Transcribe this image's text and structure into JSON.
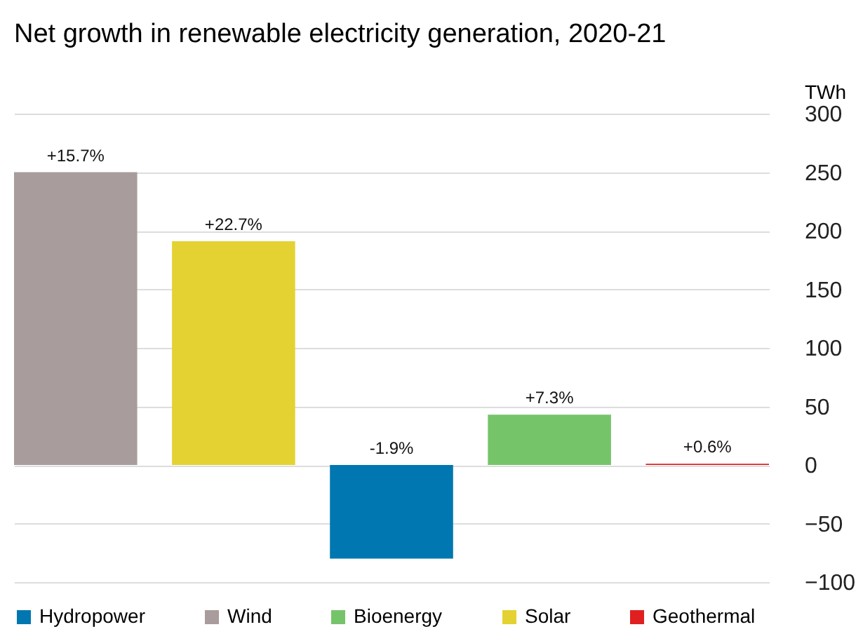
{
  "chart_data": {
    "type": "bar",
    "title": "Net growth in renewable electricity generation, 2020-21",
    "ylabel": "TWh",
    "categories": [
      null,
      null,
      null,
      null,
      null
    ],
    "series": [
      {
        "name": "Hydropower",
        "color": "#0077b0",
        "values": [
          null,
          null,
          -80,
          null,
          null
        ]
      },
      {
        "name": "Wind",
        "color": "#a89c9c",
        "values": [
          250,
          null,
          null,
          null,
          null
        ]
      },
      {
        "name": "Bioenergy",
        "color": "#76c46a",
        "values": [
          null,
          null,
          null,
          43,
          null
        ]
      },
      {
        "name": "Solar",
        "color": "#e3d232",
        "values": [
          null,
          191,
          null,
          null,
          null
        ]
      },
      {
        "name": "Geothermal",
        "color": "#e02020",
        "values": [
          null,
          null,
          null,
          null,
          1
        ]
      }
    ],
    "annotations": [
      {
        "text": "+15.7%",
        "y": 250
      },
      {
        "text": "+22.7%",
        "y": 191
      },
      {
        "text": "-1.9%",
        "y": 0
      },
      {
        "text": "+7.3%",
        "y": 43
      },
      {
        "text": "+0.6%",
        "y": 1
      }
    ],
    "ylim": [
      -100,
      300
    ],
    "yticks": [
      -100,
      -50,
      0,
      50,
      100,
      150,
      200,
      250,
      300
    ],
    "grid": "y",
    "legend": "bottom"
  }
}
